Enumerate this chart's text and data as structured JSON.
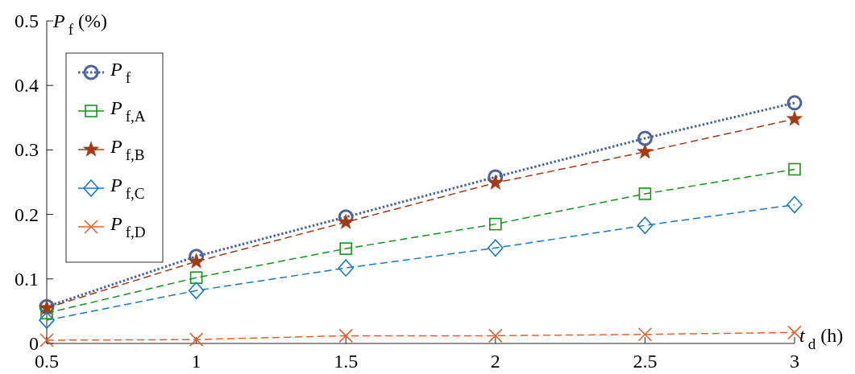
{
  "chart_data": {
    "type": "line",
    "ylabel": "P$_{f}$ (%)",
    "xlabel": "t$_{d}$ (h)",
    "x": [
      0.5,
      1,
      1.5,
      2,
      2.5,
      3
    ],
    "xlim": [
      0.5,
      3
    ],
    "xticks": [
      0.5,
      1,
      1.5,
      2,
      2.5,
      3
    ],
    "ylim": [
      0,
      0.5
    ],
    "yticks": [
      0,
      0.1,
      0.2,
      0.3,
      0.4,
      0.5
    ],
    "grid": false,
    "legend": "top left",
    "series": [
      {
        "name": "P$_{f}$",
        "color": "#4a649c",
        "marker": "circle",
        "line_style": "dotted",
        "values": [
          0.057,
          0.135,
          0.196,
          0.258,
          0.318,
          0.373
        ]
      },
      {
        "name": "P$_{f,A}$",
        "color": "#15941b",
        "marker": "square",
        "line_style": "dashed",
        "values": [
          0.047,
          0.102,
          0.147,
          0.185,
          0.232,
          0.27
        ]
      },
      {
        "name": "P$_{f,B}$",
        "color": "#a23b14",
        "marker": "star",
        "line_style": "dashed",
        "values": [
          0.055,
          0.127,
          0.188,
          0.249,
          0.297,
          0.348
        ]
      },
      {
        "name": "P$_{f,C}$",
        "color": "#1a78c8",
        "marker": "diamond",
        "line_style": "dashed",
        "values": [
          0.036,
          0.082,
          0.117,
          0.148,
          0.183,
          0.215
        ]
      },
      {
        "name": "P$_{f,D}$",
        "color": "#e0622e",
        "marker": "cross",
        "line_style": "dashed",
        "values": [
          0.005,
          0.006,
          0.012,
          0.012,
          0.014,
          0.017
        ]
      }
    ]
  }
}
